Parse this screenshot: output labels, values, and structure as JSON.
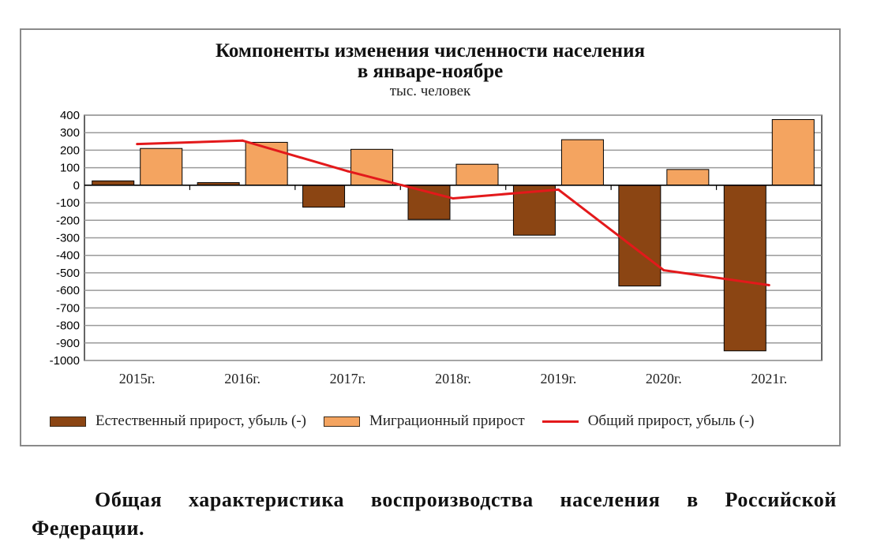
{
  "chart": {
    "title_line1": "Компоненты изменения численности населения",
    "title_line2": "в январе-ноябре",
    "subtitle": "тыс. человек"
  },
  "chart_data": {
    "type": "bar",
    "title": "Компоненты изменения численности населения в январе-ноябре",
    "subtitle": "тыс. человек",
    "categories": [
      "2015г.",
      "2016г.",
      "2017г.",
      "2018г.",
      "2019г.",
      "2020г.",
      "2021г."
    ],
    "series": [
      {
        "name": "Естественный прирост, убыль (-)",
        "type": "bar",
        "color": "#8b4513",
        "values": [
          25,
          15,
          -125,
          -195,
          -285,
          -575,
          -945
        ]
      },
      {
        "name": "Миграционный прирост",
        "type": "bar",
        "color": "#f4a460",
        "values": [
          210,
          245,
          205,
          120,
          260,
          90,
          375
        ]
      },
      {
        "name": "Общий прирост, убыль (-)",
        "type": "line",
        "color": "#e3191b",
        "values": [
          235,
          255,
          80,
          -75,
          -25,
          -485,
          -570
        ]
      }
    ],
    "ylim": [
      -1000,
      400
    ],
    "yticks": [
      400,
      300,
      200,
      100,
      0,
      -100,
      -200,
      -300,
      -400,
      -500,
      -600,
      -700,
      -800,
      -900,
      -1000
    ],
    "grid": true,
    "legend_position": "bottom"
  },
  "footer": {
    "text": "Общая характеристика воспроизводства населения в Российской Федерации."
  }
}
